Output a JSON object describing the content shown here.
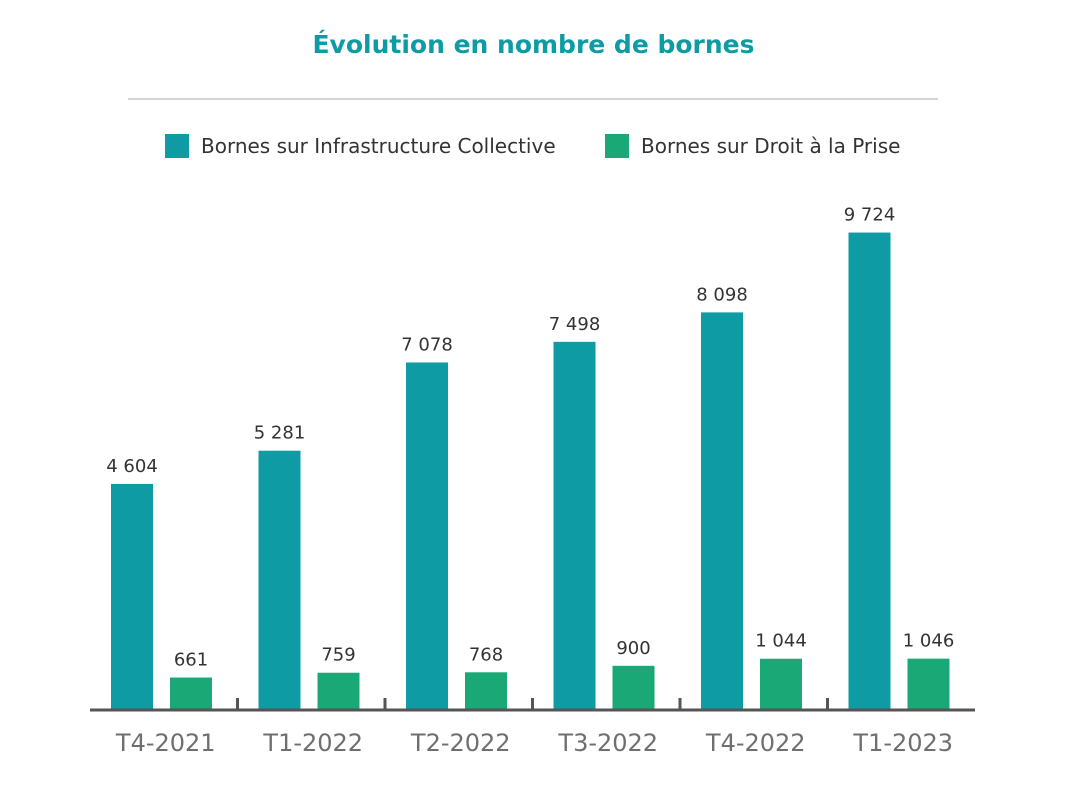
{
  "chart_data": {
    "type": "bar",
    "title": "Évolution en nombre de bornes",
    "categories": [
      "T4-2021",
      "T1-2022",
      "T2-2022",
      "T3-2022",
      "T4-2022",
      "T1-2023"
    ],
    "series": [
      {
        "name": "Bornes sur Infrastructure Collective",
        "color": "#0e9ba4",
        "values": [
          4604,
          5281,
          7078,
          7498,
          8098,
          9724
        ],
        "labels": [
          "4 604",
          "5 281",
          "7 078",
          "7 498",
          "8 098",
          "9 724"
        ]
      },
      {
        "name": "Bornes sur Droit à la Prise",
        "color": "#19a876",
        "values": [
          661,
          759,
          768,
          900,
          1044,
          1046
        ],
        "labels": [
          "661",
          "759",
          "768",
          "900",
          "1 044",
          "1 046"
        ]
      }
    ],
    "ylim": [
      0,
      10000
    ],
    "grid": false,
    "legend_position": "top"
  }
}
